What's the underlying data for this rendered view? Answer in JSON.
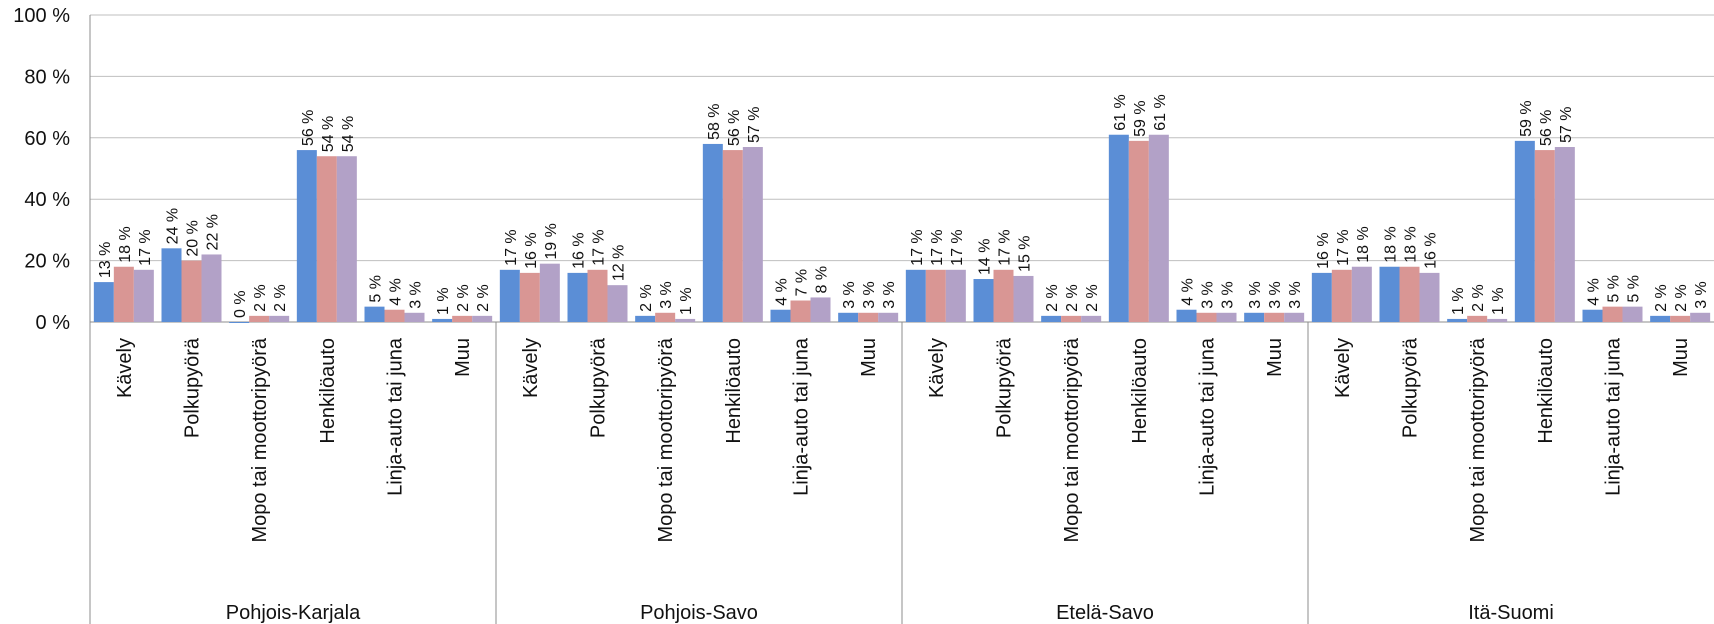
{
  "chart_data": {
    "type": "bar",
    "ylim": [
      0,
      100
    ],
    "y_ticks": [
      "0 %",
      "20 %",
      "40 %",
      "60 %",
      "80 %",
      "100 %"
    ],
    "y_tick_values": [
      0,
      20,
      40,
      60,
      80,
      100
    ],
    "grid": true,
    "legend": "none",
    "colors": [
      "#5B8ED6",
      "#D99694",
      "#B2A1C7"
    ],
    "categories": [
      "Kävely",
      "Polkupyörä",
      "Mopo tai moottoripyörä",
      "Henkilöauto",
      "Linja-auto tai juna",
      "Muu"
    ],
    "groups": [
      {
        "name": "Pohjois-Karjala",
        "values": [
          [
            13,
            18,
            17
          ],
          [
            24,
            20,
            22
          ],
          [
            0,
            2,
            2
          ],
          [
            56,
            54,
            54
          ],
          [
            5,
            4,
            3
          ],
          [
            1,
            2,
            2
          ]
        ]
      },
      {
        "name": "Pohjois-Savo",
        "values": [
          [
            17,
            16,
            19
          ],
          [
            16,
            17,
            12
          ],
          [
            2,
            3,
            1
          ],
          [
            58,
            56,
            57
          ],
          [
            4,
            7,
            8
          ],
          [
            3,
            3,
            3
          ]
        ]
      },
      {
        "name": "Etelä-Savo",
        "values": [
          [
            17,
            17,
            17
          ],
          [
            14,
            17,
            15
          ],
          [
            2,
            2,
            2
          ],
          [
            61,
            59,
            61
          ],
          [
            4,
            3,
            3
          ],
          [
            3,
            3,
            3
          ]
        ]
      },
      {
        "name": "Itä-Suomi",
        "values": [
          [
            16,
            17,
            18
          ],
          [
            18,
            18,
            16
          ],
          [
            1,
            2,
            1
          ],
          [
            59,
            56,
            57
          ],
          [
            4,
            5,
            5
          ],
          [
            2,
            2,
            3
          ]
        ]
      }
    ],
    "unit_suffix": " %"
  }
}
